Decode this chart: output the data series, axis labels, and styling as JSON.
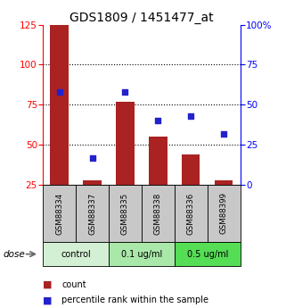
{
  "title": "GDS1809 / 1451477_at",
  "samples": [
    "GSM88334",
    "GSM88337",
    "GSM88335",
    "GSM88338",
    "GSM88336",
    "GSM88399"
  ],
  "bar_values": [
    125,
    28,
    77,
    55,
    44,
    28
  ],
  "percentile_values": [
    58,
    17,
    58,
    40,
    43,
    32
  ],
  "bar_color": "#aa2222",
  "dot_color": "#2222cc",
  "bar_bottom": 25,
  "ylim_left": [
    25,
    125
  ],
  "ylim_right": [
    0,
    100
  ],
  "yticks_left": [
    25,
    50,
    75,
    100,
    125
  ],
  "yticks_right": [
    0,
    25,
    50,
    75,
    100
  ],
  "yticklabels_right": [
    "0",
    "25",
    "50",
    "75",
    "100%"
  ],
  "grid_values": [
    50,
    75,
    100
  ],
  "groups": [
    {
      "label": "control",
      "cols": [
        0,
        1
      ],
      "color": "#d4f0d4"
    },
    {
      "label": "0.1 ug/ml",
      "cols": [
        2,
        3
      ],
      "color": "#aae8aa"
    },
    {
      "label": "0.5 ug/ml",
      "cols": [
        4,
        5
      ],
      "color": "#55dd55"
    }
  ],
  "dose_label": "dose",
  "legend_count_label": "count",
  "legend_pct_label": "percentile rank within the sample",
  "title_fontsize": 10,
  "tick_fontsize": 7.5,
  "bar_width": 0.55,
  "xlabel_bg_color": "#c8c8c8"
}
